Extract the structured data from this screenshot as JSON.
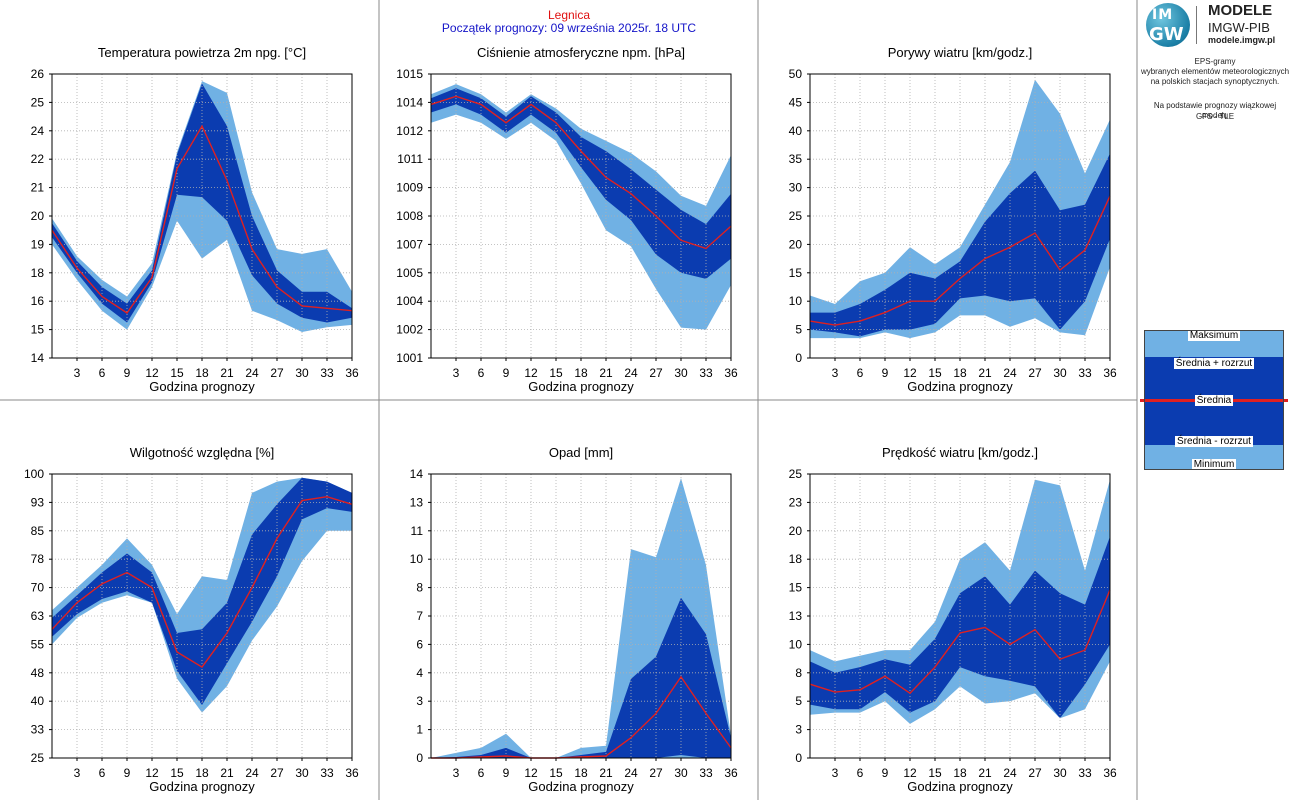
{
  "header": {
    "station": "Legnica",
    "forecast_start": "Początek prognozy: 09 września 2025r. 18 UTC"
  },
  "logo": {
    "mark_line1": "IM",
    "mark_line2": "GW",
    "title": "MODELE",
    "subtitle": "IMGW-PIB",
    "site": "modele.imgw.pl"
  },
  "side_info": {
    "line1": "EPS-gramy",
    "line2": "wybranych elementów meteorologicznych",
    "line3": "na polskich stacjach  synoptycznych.",
    "line4": "Na podstawie prognozy wiązkowej modelu",
    "line5": "GFS - TLE"
  },
  "legend": {
    "max": "Maksimum",
    "mean_plus": "Średnia + rozrzut",
    "mean": "Średnia",
    "mean_minus": "Średnia - rozrzut",
    "min": "Minimum"
  },
  "colors": {
    "envelope": "#70b1e4",
    "spread": "#0b3cb0",
    "mean": "#e02020",
    "grid": "#b0b0b0"
  },
  "chart_data": [
    {
      "id": "temp",
      "type": "area",
      "title": "Temperatura powietrza 2m npg. [°C]",
      "xlabel": "Godzina prognozy",
      "ylabel": "",
      "x": [
        0,
        3,
        6,
        9,
        12,
        15,
        18,
        21,
        24,
        27,
        30,
        33,
        36
      ],
      "xticks": [
        3,
        6,
        9,
        12,
        15,
        18,
        21,
        24,
        27,
        30,
        33,
        36
      ],
      "ylim": [
        14,
        26
      ],
      "yticks": [
        "14",
        "15",
        "16",
        "18",
        "19",
        "20",
        "21",
        "22",
        "24",
        "25",
        "26"
      ],
      "grid": true,
      "series": {
        "max": [
          19.9,
          18.3,
          17.3,
          16.6,
          18.0,
          22.7,
          25.7,
          25.2,
          21.0,
          18.6,
          18.4,
          18.6,
          16.8
        ],
        "mean_plus": [
          19.7,
          18.1,
          17.0,
          16.3,
          17.7,
          22.6,
          25.6,
          23.8,
          20.0,
          17.7,
          16.8,
          16.8,
          16.1
        ],
        "mean": [
          19.4,
          17.8,
          16.6,
          15.9,
          17.4,
          22.0,
          23.8,
          21.5,
          18.6,
          17.0,
          16.2,
          16.1,
          16.0
        ],
        "mean_minus": [
          19.1,
          17.6,
          16.3,
          15.5,
          17.2,
          20.9,
          20.8,
          19.8,
          17.5,
          16.3,
          15.7,
          15.5,
          15.7
        ],
        "min": [
          18.8,
          17.3,
          16.0,
          15.2,
          17.0,
          19.8,
          18.2,
          19.0,
          16.0,
          15.6,
          15.1,
          15.3,
          15.4
        ]
      }
    },
    {
      "id": "pressure",
      "type": "area",
      "title": "Ciśnienie atmosferyczne npm. [hPa]",
      "xlabel": "Godzina prognozy",
      "ylabel": "",
      "x": [
        0,
        3,
        6,
        9,
        12,
        15,
        18,
        21,
        24,
        27,
        30,
        33,
        36
      ],
      "xticks": [
        3,
        6,
        9,
        12,
        15,
        18,
        21,
        24,
        27,
        30,
        33,
        36
      ],
      "ylim": [
        1001,
        1015
      ],
      "yticks": [
        "1001",
        "1002",
        "1004",
        "1005",
        "1007",
        "1008",
        "1009",
        "1011",
        "1012",
        "1014",
        "1015"
      ],
      "grid": true,
      "series": {
        "max": [
          1014.0,
          1014.5,
          1014.0,
          1013.1,
          1014.0,
          1013.3,
          1012.3,
          1011.7,
          1011.1,
          1010.2,
          1009.0,
          1008.5,
          1011.0
        ],
        "mean_plus": [
          1013.8,
          1014.3,
          1013.8,
          1012.9,
          1013.9,
          1013.1,
          1011.9,
          1011.2,
          1010.3,
          1009.3,
          1008.3,
          1007.6,
          1009.1
        ],
        "mean": [
          1013.5,
          1013.9,
          1013.5,
          1012.6,
          1013.5,
          1012.6,
          1011.2,
          1009.9,
          1009.1,
          1008.0,
          1006.8,
          1006.4,
          1007.5
        ],
        "mean_minus": [
          1013.1,
          1013.5,
          1013.0,
          1012.1,
          1013.0,
          1012.1,
          1010.4,
          1008.8,
          1007.8,
          1006.1,
          1005.2,
          1004.9,
          1005.9
        ],
        "min": [
          1012.6,
          1013.0,
          1012.6,
          1011.8,
          1012.6,
          1011.7,
          1009.6,
          1007.3,
          1006.5,
          1004.4,
          1002.5,
          1002.4,
          1004.6
        ]
      }
    },
    {
      "id": "gusts",
      "type": "area",
      "title": "Porywy wiatru [km/godz.]",
      "xlabel": "Godzina prognozy",
      "ylabel": "",
      "x": [
        0,
        3,
        6,
        9,
        12,
        15,
        18,
        21,
        24,
        27,
        30,
        33,
        36
      ],
      "xticks": [
        3,
        6,
        9,
        12,
        15,
        18,
        21,
        24,
        27,
        30,
        33,
        36
      ],
      "ylim": [
        0,
        50
      ],
      "yticks": [
        "0",
        "5",
        "10",
        "15",
        "20",
        "25",
        "30",
        "35",
        "40",
        "45",
        "50"
      ],
      "grid": true,
      "series": {
        "max": [
          11.0,
          9.5,
          13.5,
          15.0,
          19.5,
          16.5,
          19.5,
          27.0,
          34.5,
          49.0,
          43.0,
          32.5,
          42.0
        ],
        "mean_plus": [
          8.0,
          8.0,
          9.5,
          12.0,
          15.0,
          14.0,
          17.0,
          24.0,
          29.0,
          33.0,
          26.0,
          27.0,
          36.0
        ],
        "mean": [
          6.5,
          5.8,
          6.5,
          8.0,
          10.0,
          10.0,
          14.0,
          17.5,
          19.5,
          22.0,
          15.5,
          19.0,
          28.5
        ],
        "mean_minus": [
          5.0,
          4.5,
          3.8,
          5.0,
          5.0,
          6.0,
          10.5,
          11.0,
          10.0,
          10.5,
          5.0,
          10.0,
          21.0
        ],
        "min": [
          3.5,
          3.5,
          3.5,
          4.5,
          3.5,
          4.5,
          7.5,
          7.5,
          5.5,
          7.0,
          4.5,
          4.0,
          16.0
        ]
      }
    },
    {
      "id": "humidity",
      "type": "area",
      "title": "Wilgotność względna [%]",
      "xlabel": "Godzina prognozy",
      "ylabel": "",
      "x": [
        0,
        3,
        6,
        9,
        12,
        15,
        18,
        21,
        24,
        27,
        30,
        33,
        36
      ],
      "xticks": [
        3,
        6,
        9,
        12,
        15,
        18,
        21,
        24,
        27,
        30,
        33,
        36
      ],
      "ylim": [
        25,
        100
      ],
      "yticks": [
        "25",
        "33",
        "40",
        "48",
        "55",
        "63",
        "70",
        "78",
        "85",
        "93",
        "100"
      ],
      "grid": true,
      "series": {
        "max": [
          64,
          70,
          76,
          83,
          76,
          63,
          73,
          72,
          95,
          98,
          99,
          98,
          95
        ],
        "mean_plus": [
          62,
          68,
          74,
          79,
          74,
          58,
          59,
          66,
          84,
          92,
          99,
          98,
          95
        ],
        "mean": [
          59,
          66,
          71,
          74,
          70,
          53,
          49,
          58,
          70,
          83,
          93,
          94,
          92
        ],
        "mean_minus": [
          57,
          63,
          67,
          69,
          66,
          48,
          39,
          50,
          61,
          73,
          88,
          91,
          90
        ],
        "min": [
          55,
          62,
          66,
          68,
          66,
          46,
          37,
          44,
          56,
          65,
          77,
          85,
          85
        ]
      }
    },
    {
      "id": "precip",
      "type": "area",
      "title": "Opad [mm]",
      "xlabel": "Godzina prognozy",
      "ylabel": "",
      "x": [
        0,
        3,
        6,
        9,
        12,
        15,
        18,
        21,
        24,
        27,
        30,
        33,
        36
      ],
      "xticks": [
        3,
        6,
        9,
        12,
        15,
        18,
        21,
        24,
        27,
        30,
        33,
        36
      ],
      "ylim": [
        0,
        14
      ],
      "yticks": [
        "0",
        "1",
        "3",
        "4",
        "6",
        "7",
        "8",
        "10",
        "11",
        "13",
        "14"
      ],
      "grid": true,
      "series": {
        "max": [
          0,
          0.25,
          0.5,
          1.2,
          0,
          0,
          0.5,
          0.6,
          10.3,
          9.9,
          13.8,
          9.5,
          1.1
        ],
        "mean_plus": [
          0,
          0.05,
          0.15,
          0.5,
          0,
          0,
          0.15,
          0.3,
          3.9,
          5.0,
          7.9,
          6.1,
          1.0
        ],
        "mean": [
          0,
          0,
          0.05,
          0.1,
          0,
          0,
          0.05,
          0.1,
          1.0,
          2.2,
          4.0,
          2.2,
          0.5
        ],
        "mean_minus": [
          0,
          0,
          0,
          0,
          0,
          0,
          0,
          0,
          0,
          0,
          0.15,
          0,
          0
        ],
        "min": [
          0,
          0,
          0,
          0,
          0,
          0,
          0,
          0,
          0,
          0,
          0,
          0,
          0
        ]
      }
    },
    {
      "id": "wind",
      "type": "area",
      "title": "Prędkość wiatru [km/godz.]",
      "xlabel": "Godzina prognozy",
      "ylabel": "",
      "x": [
        0,
        3,
        6,
        9,
        12,
        15,
        18,
        21,
        24,
        27,
        30,
        33,
        36
      ],
      "xticks": [
        3,
        6,
        9,
        12,
        15,
        18,
        21,
        24,
        27,
        30,
        33,
        36
      ],
      "ylim": [
        0,
        25
      ],
      "yticks": [
        "0",
        "3",
        "5",
        "8",
        "10",
        "13",
        "15",
        "18",
        "20",
        "23",
        "25"
      ],
      "grid": true,
      "series": {
        "max": [
          9.5,
          8.5,
          9.0,
          9.5,
          9.5,
          12.0,
          17.5,
          19.0,
          16.5,
          24.5,
          24.0,
          16.5,
          24.5
        ],
        "mean_plus": [
          8.5,
          7.5,
          8.0,
          8.7,
          8.2,
          10.5,
          14.5,
          16.0,
          13.5,
          16.5,
          14.5,
          13.5,
          19.5
        ],
        "mean": [
          6.5,
          5.8,
          6.0,
          7.2,
          5.7,
          8.0,
          11.0,
          11.5,
          10.0,
          11.3,
          8.7,
          9.5,
          14.8
        ],
        "mean_minus": [
          4.7,
          4.3,
          4.3,
          5.8,
          4.0,
          5.0,
          8.0,
          7.2,
          6.8,
          6.3,
          3.5,
          6.5,
          10.0
        ],
        "min": [
          3.8,
          4.0,
          4.0,
          5.0,
          3.0,
          4.3,
          6.3,
          4.8,
          5.0,
          5.7,
          3.5,
          4.3,
          8.5
        ]
      }
    }
  ]
}
